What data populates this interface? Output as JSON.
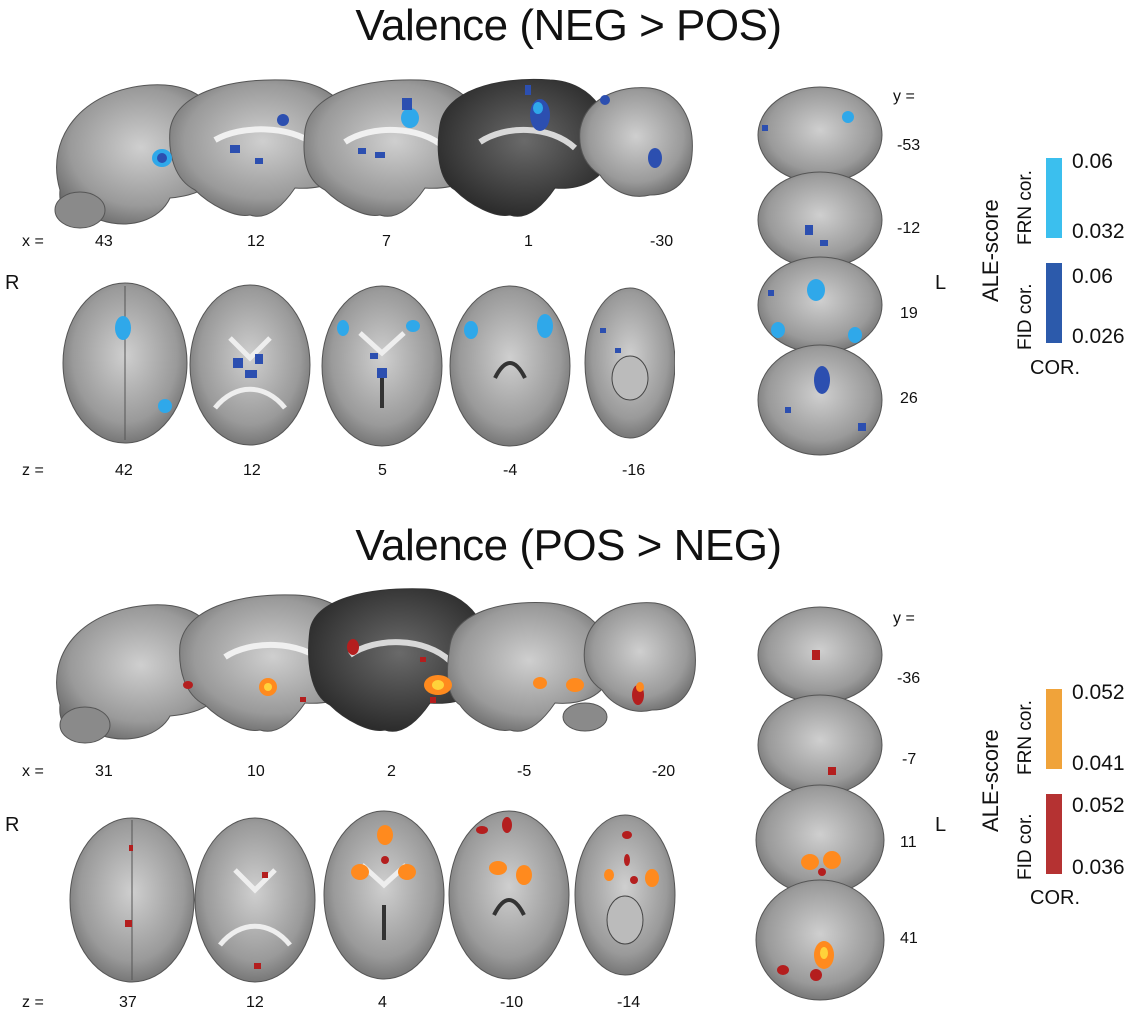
{
  "panels": [
    {
      "title": "Valence (NEG > POS)",
      "sagittal": {
        "axis_label": "x =",
        "slices": [
          "43",
          "12",
          "7",
          "1",
          "-30"
        ]
      },
      "axial": {
        "axis_label": "z =",
        "slices": [
          "42",
          "12",
          "5",
          "-4",
          "-16"
        ]
      },
      "coronal": {
        "axis_label": "y =",
        "slices": [
          "-53",
          "-12",
          "19",
          "26"
        ]
      },
      "side_right": "R",
      "side_left": "L",
      "legend": {
        "title": "ALE-score",
        "footer": "COR.",
        "bars": [
          {
            "name": "FRN cor.",
            "max": "0.06",
            "min": "0.032",
            "color": "#3bbfee"
          },
          {
            "name": "FID cor.",
            "max": "0.06",
            "min": "0.026",
            "color": "#2c5aab"
          }
        ]
      },
      "blob_colors": {
        "light": "#2fa8ea",
        "dark": "#2c4fb0"
      }
    },
    {
      "title": "Valence (POS > NEG)",
      "sagittal": {
        "axis_label": "x =",
        "slices": [
          "31",
          "10",
          "2",
          "-5",
          "-20"
        ]
      },
      "axial": {
        "axis_label": "z =",
        "slices": [
          "37",
          "12",
          "4",
          "-10",
          "-14"
        ]
      },
      "coronal": {
        "axis_label": "y =",
        "slices": [
          "-36",
          "-7",
          "11",
          "41"
        ]
      },
      "side_right": "R",
      "side_left": "L",
      "legend": {
        "title": "ALE-score",
        "footer": "COR.",
        "bars": [
          {
            "name": "FRN cor.",
            "max": "0.052",
            "min": "0.041",
            "color": "#f0a33a"
          },
          {
            "name": "FID cor.",
            "max": "0.052",
            "min": "0.036",
            "color": "#b53232"
          }
        ]
      },
      "blob_colors": {
        "light": "#ff8a1e",
        "dark": "#b41e1e"
      }
    }
  ]
}
